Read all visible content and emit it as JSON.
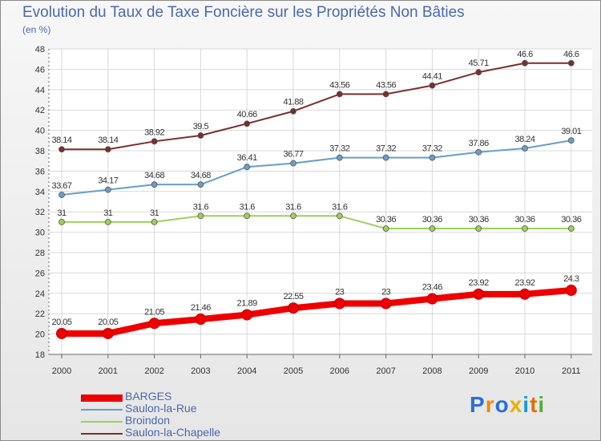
{
  "title": "Evolution du Taux de Taxe Foncière sur les Propriétés Non Bâties",
  "unit": "(en %)",
  "brand": "Proxiti",
  "chart_data": {
    "type": "line",
    "title": "Evolution du Taux de Taxe Foncière sur les Propriétés Non Bâties",
    "ylabel": "(en %)",
    "xlabel": "",
    "x": [
      "2000",
      "2001",
      "2002",
      "2003",
      "2004",
      "2005",
      "2006",
      "2007",
      "2008",
      "2009",
      "2010",
      "2011"
    ],
    "ylim": [
      18,
      48
    ],
    "yticks": [
      18,
      20,
      22,
      24,
      26,
      28,
      30,
      32,
      34,
      36,
      38,
      40,
      42,
      44,
      46,
      48
    ],
    "grid": true,
    "legend_position": "bottom-left",
    "series": [
      {
        "name": "BARGES",
        "color": "#ee0000",
        "emphasis": true,
        "values": [
          20.05,
          20.05,
          21.05,
          21.46,
          21.89,
          22.55,
          23,
          23,
          23.46,
          23.92,
          23.92,
          24.3
        ],
        "labels": [
          "20.05",
          "20.05",
          "21.05",
          "21.46",
          "21.89",
          "22.55",
          "23",
          "23",
          "23.46",
          "23.92",
          "23.92",
          "24.3"
        ]
      },
      {
        "name": "Saulon-la-Rue",
        "color": "#6a9ec8",
        "values": [
          33.67,
          34.17,
          34.68,
          34.68,
          36.41,
          36.77,
          37.32,
          37.32,
          37.32,
          37.86,
          38.24,
          39.01
        ],
        "labels": [
          "33.67",
          "34.17",
          "34.68",
          "34.68",
          "36.41",
          "36.77",
          "37.32",
          "37.32",
          "37.32",
          "37.86",
          "38.24",
          "39.01"
        ]
      },
      {
        "name": "Broindon",
        "color": "#9ed05a",
        "values": [
          31,
          31,
          31,
          31.6,
          31.6,
          31.6,
          31.6,
          30.36,
          30.36,
          30.36,
          30.36,
          30.36
        ],
        "labels": [
          "31",
          "31",
          "31",
          "31.6",
          "31.6",
          "31.6",
          "31.6",
          "30.36",
          "30.36",
          "30.36",
          "30.36",
          "30.36"
        ]
      },
      {
        "name": "Saulon-la-Chapelle",
        "color": "#7a2e2e",
        "values": [
          38.14,
          38.14,
          38.92,
          39.5,
          40.66,
          41.88,
          43.56,
          43.56,
          44.41,
          45.71,
          46.6,
          46.6
        ],
        "labels": [
          "38.14",
          "38.14",
          "38.92",
          "39.5",
          "40.66",
          "41.88",
          "43.56",
          "43.56",
          "44.41",
          "45.71",
          "46.6",
          "46.6"
        ]
      }
    ]
  }
}
